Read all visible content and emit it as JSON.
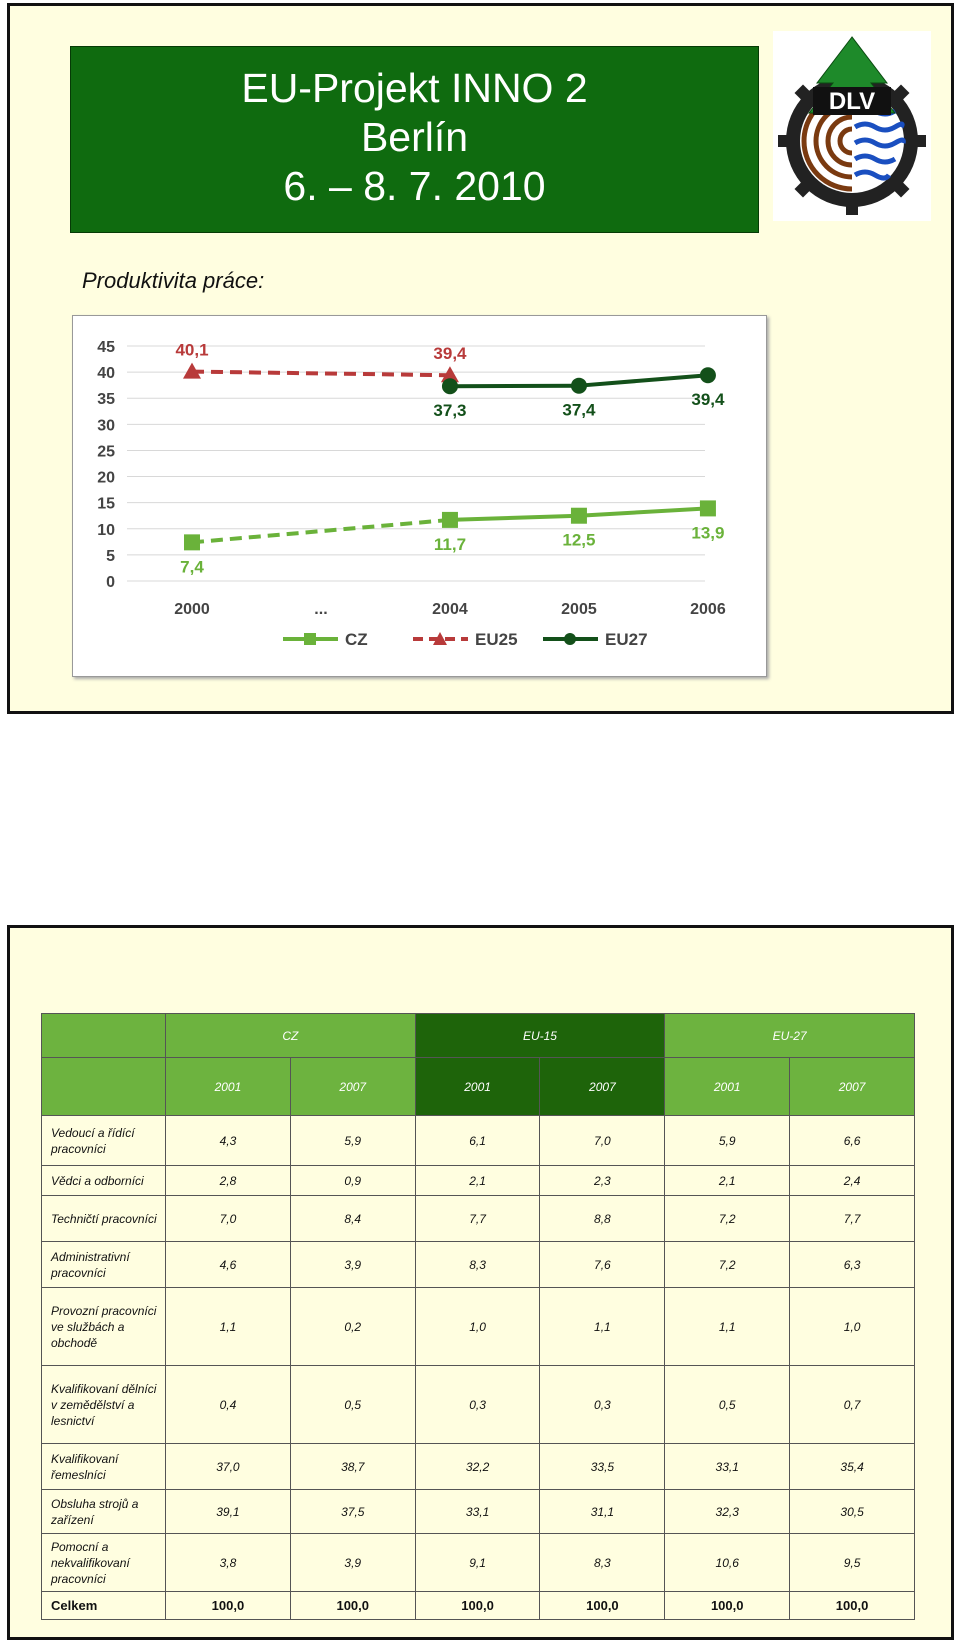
{
  "slide1": {
    "title_lines": [
      "EU-Projekt INNO 2",
      "Berlín",
      "6. – 8. 7. 2010"
    ],
    "logo_text": "DLV",
    "subtitle": "Produktivita práce:",
    "chart_data": {
      "type": "line",
      "categories": [
        "2000",
        "...",
        "2004",
        "2005",
        "2006"
      ],
      "ylim": [
        0,
        45
      ],
      "yticks": [
        0,
        5,
        10,
        15,
        20,
        25,
        30,
        35,
        40,
        45
      ],
      "grid": true,
      "legend_position": "bottom",
      "series": [
        {
          "name": "CZ",
          "color": "#6ab23a",
          "marker": "square",
          "values": [
            7.4,
            null,
            11.7,
            12.5,
            13.9
          ],
          "labels": [
            "7,4",
            null,
            "11,7",
            "12,5",
            "13,9"
          ]
        },
        {
          "name": "EU25",
          "color": "#b83a3a",
          "marker": "triangle",
          "values": [
            40.1,
            null,
            39.4,
            null,
            null
          ],
          "labels": [
            "40,1",
            null,
            "39,4",
            null,
            null
          ]
        },
        {
          "name": "EU27",
          "color": "#13501a",
          "marker": "circle",
          "values": [
            null,
            null,
            37.3,
            37.4,
            39.4
          ],
          "labels": [
            null,
            null,
            "37,3",
            "37,4",
            "39,4"
          ]
        }
      ]
    }
  },
  "slide2": {
    "table": {
      "groups": [
        "CZ",
        "EU-15",
        "EU-27"
      ],
      "years": [
        "2001",
        "2007",
        "2001",
        "2007",
        "2001",
        "2007"
      ],
      "rows": [
        {
          "label": "Vedoucí a řídící pracovníci",
          "values": [
            "4,3",
            "5,9",
            "6,1",
            "7,0",
            "5,9",
            "6,6"
          ]
        },
        {
          "label": "Vědci a odborníci",
          "values": [
            "2,8",
            "0,9",
            "2,1",
            "2,3",
            "2,1",
            "2,4"
          ]
        },
        {
          "label": "Techničtí pracovníci",
          "values": [
            "7,0",
            "8,4",
            "7,7",
            "8,8",
            "7,2",
            "7,7"
          ]
        },
        {
          "label": "Administrativní pracovníci",
          "values": [
            "4,6",
            "3,9",
            "8,3",
            "7,6",
            "7,2",
            "6,3"
          ]
        },
        {
          "label": "Provozní pracovníci ve službách a obchodě",
          "values": [
            "1,1",
            "0,2",
            "1,0",
            "1,1",
            "1,1",
            "1,0"
          ]
        },
        {
          "label": "Kvalifikovaní dělníci v zemědělství a lesnictví",
          "values": [
            "0,4",
            "0,5",
            "0,3",
            "0,3",
            "0,5",
            "0,7"
          ]
        },
        {
          "label": "Kvalifikovaní řemeslníci",
          "values": [
            "37,0",
            "38,7",
            "32,2",
            "33,5",
            "33,1",
            "35,4"
          ]
        },
        {
          "label": "Obsluha strojů a zařízení",
          "values": [
            "39,1",
            "37,5",
            "33,1",
            "31,1",
            "32,3",
            "30,5"
          ]
        },
        {
          "label": "Pomocní a nekvalifikovaní pracovníci",
          "values": [
            "3,8",
            "3,9",
            "9,1",
            "8,3",
            "10,6",
            "9,5"
          ]
        }
      ],
      "total": {
        "label": "Celkem",
        "values": [
          "100,0",
          "100,0",
          "100,0",
          "100,0",
          "100,0",
          "100,0"
        ]
      }
    }
  }
}
